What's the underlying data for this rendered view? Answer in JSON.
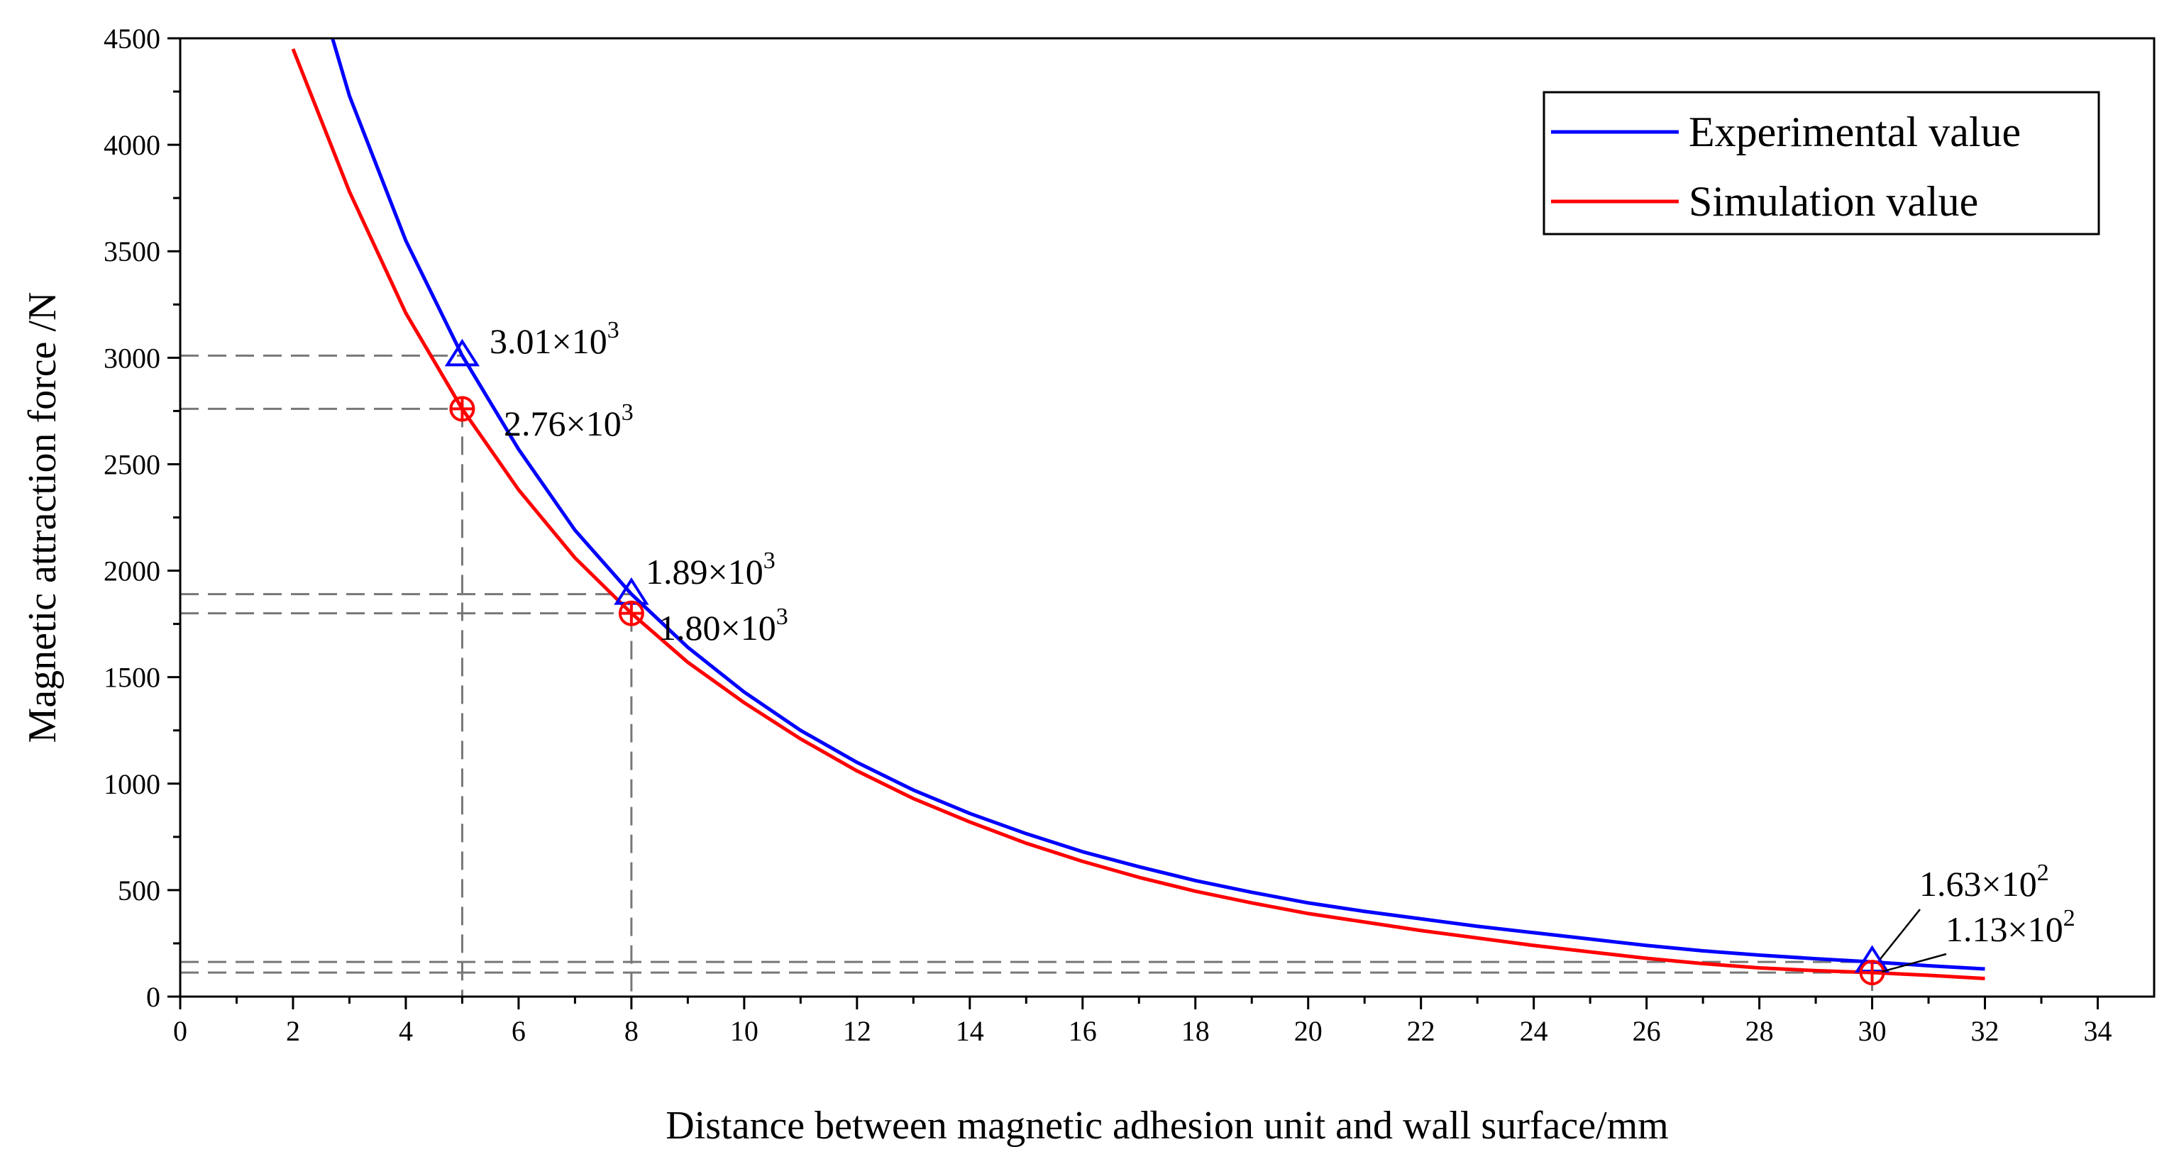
{
  "chart_data": {
    "type": "line",
    "title": "",
    "xlabel": "Distance between magnetic adhesion unit and wall surface/mm",
    "ylabel": "Magnetic attraction force /N",
    "xlim": [
      0,
      35
    ],
    "ylim": [
      0,
      4500
    ],
    "x_ticks": [
      "0",
      "2",
      "4",
      "6",
      "8",
      "10",
      "12",
      "14",
      "16",
      "18",
      "20",
      "22",
      "24",
      "26",
      "28",
      "30",
      "32",
      "34"
    ],
    "y_ticks": [
      "0",
      "500",
      "1000",
      "1500",
      "2000",
      "2500",
      "3000",
      "3500",
      "4000",
      "4500"
    ],
    "grid": false,
    "legend_position": "top-right",
    "series": [
      {
        "name": "Experimental value",
        "color": "#0000ff",
        "marker": "triangle",
        "x": [
          2.7,
          3,
          4,
          5,
          6,
          7,
          8,
          9,
          10,
          11,
          12,
          13,
          14,
          15,
          16,
          17,
          18,
          19,
          20,
          21,
          22,
          23,
          24,
          25,
          26,
          27,
          28,
          29,
          30,
          31,
          32
        ],
        "y": [
          4500,
          4230,
          3550,
          3010,
          2570,
          2190,
          1890,
          1640,
          1430,
          1250,
          1100,
          970,
          860,
          765,
          680,
          610,
          545,
          490,
          440,
          400,
          365,
          330,
          300,
          270,
          240,
          215,
          195,
          178,
          163,
          145,
          130
        ],
        "marked_points": [
          [
            5,
            3010
          ],
          [
            8,
            1890
          ],
          [
            30,
            163
          ]
        ]
      },
      {
        "name": "Simulation value",
        "color": "#ff0000",
        "marker": "circle-plus",
        "x": [
          2,
          3,
          4,
          5,
          6,
          7,
          8,
          9,
          10,
          11,
          12,
          13,
          14,
          15,
          16,
          17,
          18,
          19,
          20,
          21,
          22,
          23,
          24,
          25,
          26,
          27,
          28,
          29,
          30,
          31,
          32
        ],
        "y": [
          4450,
          3780,
          3210,
          2760,
          2380,
          2060,
          1800,
          1570,
          1380,
          1210,
          1060,
          930,
          820,
          720,
          635,
          560,
          495,
          440,
          390,
          350,
          310,
          275,
          240,
          210,
          180,
          155,
          135,
          122,
          113,
          100,
          85
        ],
        "marked_points": [
          [
            5,
            2760
          ],
          [
            8,
            1800
          ],
          [
            30,
            113
          ]
        ]
      }
    ],
    "annotations": [
      {
        "x": 5,
        "y": 3010,
        "mantissa": "3.01×10",
        "exponent": "3"
      },
      {
        "x": 5,
        "y": 2760,
        "mantissa": "2.76×10",
        "exponent": "3"
      },
      {
        "x": 8,
        "y": 1890,
        "mantissa": "1.89×10",
        "exponent": "3"
      },
      {
        "x": 8,
        "y": 1800,
        "mantissa": "1.80×10",
        "exponent": "3"
      },
      {
        "x": 30,
        "y": 163,
        "mantissa": "1.63×10",
        "exponent": "2"
      },
      {
        "x": 30,
        "y": 113,
        "mantissa": "1.13×10",
        "exponent": "2"
      }
    ]
  }
}
